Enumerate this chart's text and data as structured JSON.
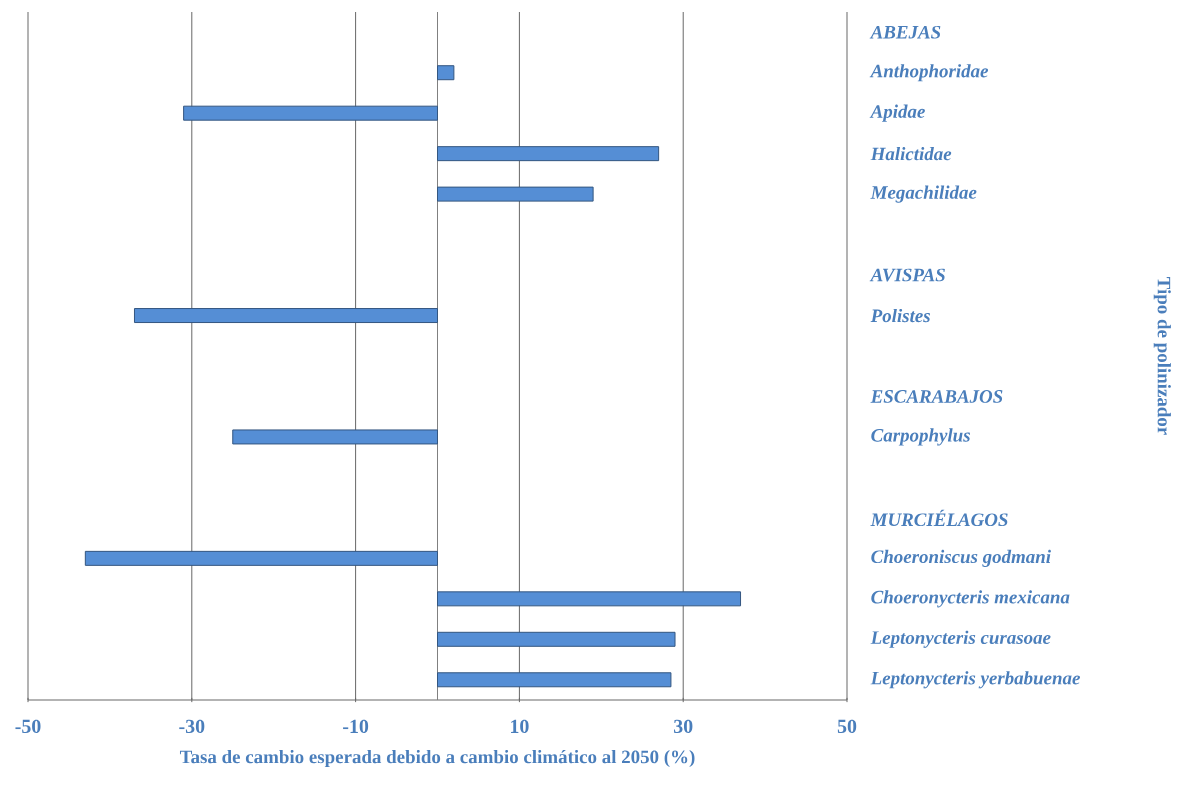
{
  "chart_data": {
    "type": "bar",
    "orientation": "horizontal",
    "xlabel": "Tasa de cambio esperada debido a cambio climático al 2050 (%)",
    "ylabel": "Tipo de polinizador",
    "categories": [
      "ABEJAS",
      "Anthophoridae",
      "Apidae",
      "Halictidae",
      "Megachilidae",
      null,
      "AVISPAS",
      "Polistes",
      null,
      "ESCARABAJOS",
      "Carpophylus",
      null,
      "MURCIÉLAGOS",
      "Choeroniscus godmani",
      "Choeronycteris mexicana",
      "Leptonycteris curasoae",
      "Leptonycteris yerbabuenae"
    ],
    "values": [
      null,
      2,
      -31,
      27,
      19,
      null,
      null,
      -37,
      null,
      null,
      -25,
      null,
      null,
      -43,
      37,
      29,
      28.5
    ],
    "color": "#558ed5",
    "xlim": [
      -50,
      50
    ],
    "xticks": [
      -50,
      -30,
      -10,
      10,
      30,
      50
    ],
    "grid": "x",
    "ref_lines": [
      {
        "axis": "x",
        "value": 0,
        "color": "#808080"
      }
    ]
  }
}
